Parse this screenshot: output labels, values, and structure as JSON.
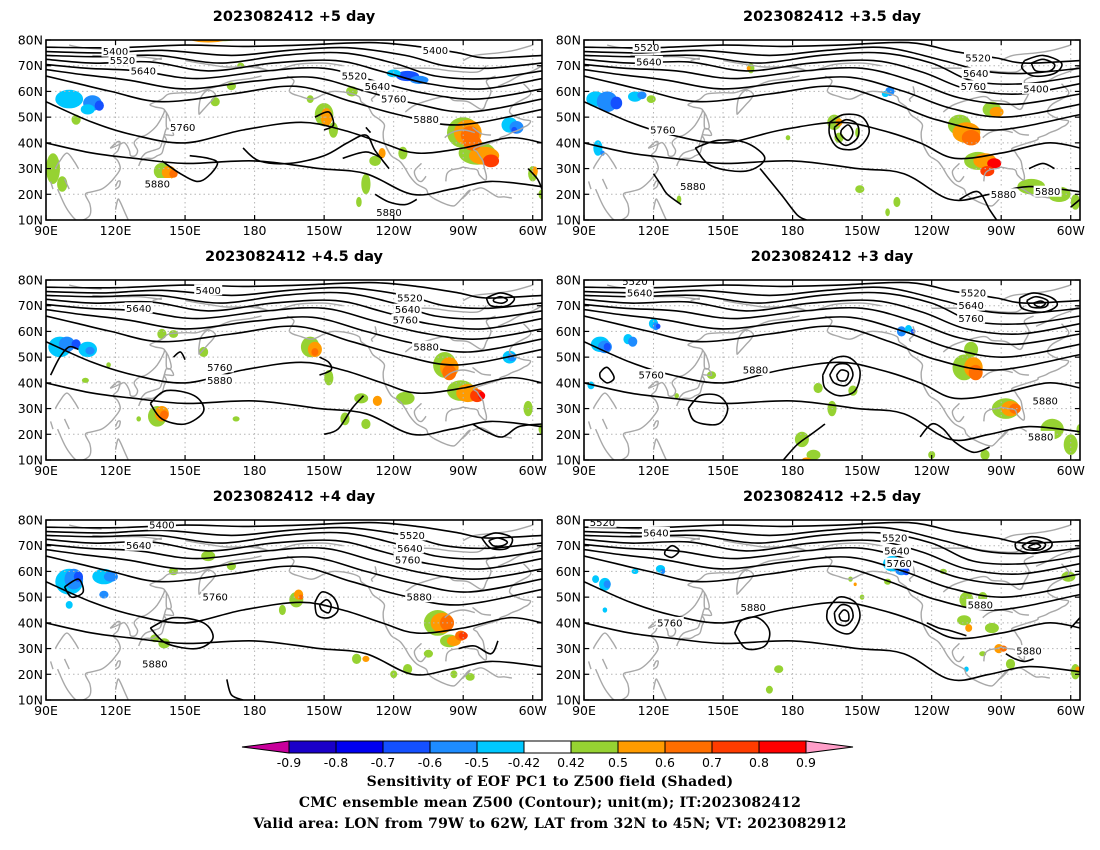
{
  "chart_data": {
    "type": "heatmap",
    "panels": [
      {
        "title": "2023082412 +5 day",
        "contour_labels": [
          {
            "text": "5400",
            "lon": 120,
            "lat": 75.5
          },
          {
            "text": "5520",
            "lon": 123,
            "lat": 72
          },
          {
            "text": "5640",
            "lon": 132,
            "lat": 68
          },
          {
            "text": "5400",
            "lon": 258,
            "lat": 76
          },
          {
            "text": "5520",
            "lon": 223,
            "lat": 66
          },
          {
            "text": "5640",
            "lon": 233,
            "lat": 62
          },
          {
            "text": "5760",
            "lon": 240,
            "lat": 57
          },
          {
            "text": "5760",
            "lon": 149,
            "lat": 46
          },
          {
            "text": "5880",
            "lon": 254,
            "lat": 49
          },
          {
            "text": "5880",
            "lon": 138,
            "lat": 24
          },
          {
            "text": "5880",
            "lon": 238,
            "lat": 13
          }
        ]
      },
      {
        "title": "2023082412 +3.5 day",
        "contour_labels": [
          {
            "text": "5520",
            "lon": 117,
            "lat": 77
          },
          {
            "text": "5640",
            "lon": 118,
            "lat": 71.5
          },
          {
            "text": "5520",
            "lon": 260,
            "lat": 73
          },
          {
            "text": "5640",
            "lon": 259,
            "lat": 67
          },
          {
            "text": "5760",
            "lon": 258,
            "lat": 62
          },
          {
            "text": "5400",
            "lon": 285,
            "lat": 61
          },
          {
            "text": "5760",
            "lon": 124,
            "lat": 45
          },
          {
            "text": "5880",
            "lon": 137,
            "lat": 23
          },
          {
            "text": "5880",
            "lon": 271,
            "lat": 20
          },
          {
            "text": "5880",
            "lon": 290,
            "lat": 21
          }
        ]
      },
      {
        "title": "2023082412 +4.5 day",
        "contour_labels": [
          {
            "text": "5400",
            "lon": 160,
            "lat": 76
          },
          {
            "text": "5640",
            "lon": 130,
            "lat": 69
          },
          {
            "text": "5520",
            "lon": 247,
            "lat": 73
          },
          {
            "text": "5640",
            "lon": 246,
            "lat": 68.5
          },
          {
            "text": "5760",
            "lon": 245,
            "lat": 64.5
          },
          {
            "text": "5880",
            "lon": 254,
            "lat": 54
          },
          {
            "text": "5760",
            "lon": 165,
            "lat": 46
          },
          {
            "text": "5880",
            "lon": 165,
            "lat": 41
          }
        ]
      },
      {
        "title": "2023082412 +3 day",
        "contour_labels": [
          {
            "text": "5520",
            "lon": 112,
            "lat": 79.5
          },
          {
            "text": "5640",
            "lon": 114,
            "lat": 75
          },
          {
            "text": "5520",
            "lon": 258,
            "lat": 75
          },
          {
            "text": "5640",
            "lon": 257,
            "lat": 70
          },
          {
            "text": "5760",
            "lon": 257,
            "lat": 65
          },
          {
            "text": "5760",
            "lon": 119,
            "lat": 43
          },
          {
            "text": "5880",
            "lon": 164,
            "lat": 45
          },
          {
            "text": "5880",
            "lon": 289,
            "lat": 33
          },
          {
            "text": "5880",
            "lon": 287,
            "lat": 19
          }
        ]
      },
      {
        "title": "2023082412 +4 day",
        "contour_labels": [
          {
            "text": "5400",
            "lon": 140,
            "lat": 78
          },
          {
            "text": "5640",
            "lon": 130,
            "lat": 70
          },
          {
            "text": "5520",
            "lon": 248,
            "lat": 74
          },
          {
            "text": "5640",
            "lon": 247,
            "lat": 69
          },
          {
            "text": "5760",
            "lon": 246,
            "lat": 64.5
          },
          {
            "text": "5760",
            "lon": 163,
            "lat": 50
          },
          {
            "text": "5880",
            "lon": 251,
            "lat": 50
          },
          {
            "text": "5880",
            "lon": 137,
            "lat": 24
          }
        ]
      },
      {
        "title": "2023082412 +2.5 day",
        "contour_labels": [
          {
            "text": "5520",
            "lon": 98,
            "lat": 79
          },
          {
            "text": "5640",
            "lon": 121,
            "lat": 75
          },
          {
            "text": "5520",
            "lon": 224,
            "lat": 73
          },
          {
            "text": "5640",
            "lon": 225,
            "lat": 68
          },
          {
            "text": "5760",
            "lon": 226,
            "lat": 63
          },
          {
            "text": "5880",
            "lon": 163,
            "lat": 46
          },
          {
            "text": "5760",
            "lon": 127,
            "lat": 40
          },
          {
            "text": "5880",
            "lon": 261,
            "lat": 47
          },
          {
            "text": "5880",
            "lon": 282,
            "lat": 29
          }
        ]
      }
    ],
    "x_ticks": [
      "90E",
      "120E",
      "150E",
      "180",
      "150W",
      "120W",
      "90W",
      "60W"
    ],
    "y_ticks": [
      "10N",
      "20N",
      "30N",
      "40N",
      "50N",
      "60N",
      "70N",
      "80N"
    ],
    "colorbar": {
      "tick_labels": [
        "-0.9",
        "-0.8",
        "-0.7",
        "-0.6",
        "-0.5",
        "-0.42",
        "0.42",
        "0.5",
        "0.6",
        "0.7",
        "0.8",
        "0.9"
      ],
      "bins": [
        {
          "from": -0.9,
          "to": -0.8,
          "color": "#1a00c8"
        },
        {
          "from": -0.8,
          "to": -0.7,
          "color": "#0000f0"
        },
        {
          "from": -0.7,
          "to": -0.6,
          "color": "#1450ff"
        },
        {
          "from": -0.6,
          "to": -0.5,
          "color": "#1e8cff"
        },
        {
          "from": -0.5,
          "to": -0.42,
          "color": "#00c8ff"
        },
        {
          "from": -0.42,
          "to": 0.42,
          "color": "#ffffff"
        },
        {
          "from": 0.42,
          "to": 0.5,
          "color": "#96d232"
        },
        {
          "from": 0.5,
          "to": 0.6,
          "color": "#ff9b00"
        },
        {
          "from": 0.6,
          "to": 0.7,
          "color": "#ff6e00"
        },
        {
          "from": 0.7,
          "to": 0.8,
          "color": "#ff3c00"
        },
        {
          "from": 0.8,
          "to": 0.9,
          "color": "#ff0000"
        }
      ],
      "under_color": "#c8009b",
      "over_color": "#ff9ec8"
    },
    "caption_lines": [
      "Sensitivity of EOF PC1 to Z500 field (Shaded)",
      "CMC ensemble mean Z500 (Contour); unit(m); IT:2023082412",
      "Valid area: LON from 79W to 62W, LAT from 32N to 45N; VT: 2023082912"
    ]
  }
}
